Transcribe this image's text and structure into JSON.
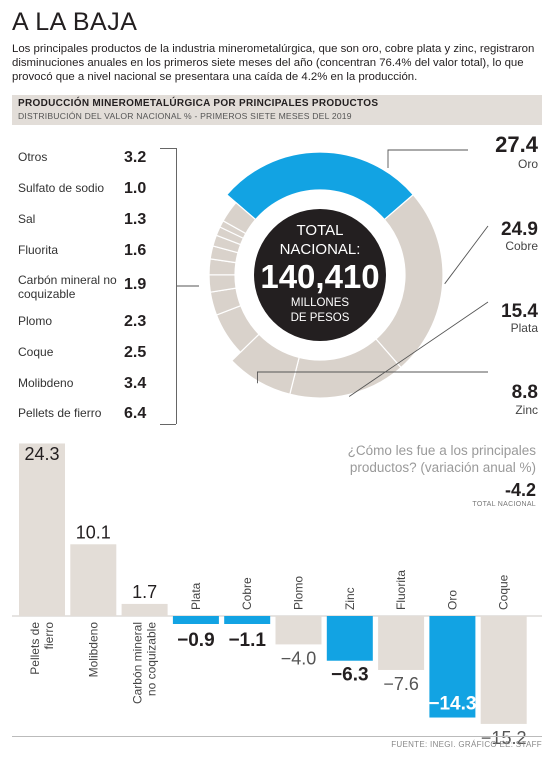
{
  "header": {
    "title": "A LA BAJA",
    "intro": "Los principales productos de la industria minerometalúrgica, que son oro, cobre plata y zinc, registraron disminuciones anuales en los primeros siete meses del año (concentran 76.4% del valor total), lo que provocó que a nivel nacional se presentara una caída de 4.2% en la producción."
  },
  "chart_data": [
    {
      "type": "pie",
      "title": "PRODUCCIÓN MINEROMETALÚRGICA POR PRINCIPALES PRODUCTOS",
      "subtitle": "DISTRIBUCIÓN DEL VALOR NACIONAL % - PRIMEROS SIETE MESES DEL 2019",
      "center": {
        "line1": "TOTAL",
        "line2": "NACIONAL:",
        "value": "140,410",
        "unit1": "MILLONES",
        "unit2": "DE PESOS"
      },
      "main_slices": [
        {
          "name": "Oro",
          "value": 27.4
        },
        {
          "name": "Cobre",
          "value": 24.9
        },
        {
          "name": "Plata",
          "value": 15.4
        },
        {
          "name": "Zinc",
          "value": 8.8
        }
      ],
      "minor_slices": [
        {
          "name": "Otros",
          "value": 3.2
        },
        {
          "name": "Sulfato de sodio",
          "value": 1.0
        },
        {
          "name": "Sal",
          "value": 1.3
        },
        {
          "name": "Fluorita",
          "value": 1.6
        },
        {
          "name": "Carbón mineral no coquizable",
          "value": 1.9
        },
        {
          "name": "Plomo",
          "value": 2.3
        },
        {
          "name": "Coque",
          "value": 2.5
        },
        {
          "name": "Molibdeno",
          "value": 3.4
        },
        {
          "name": "Pellets de fierro",
          "value": 6.4
        }
      ],
      "highlight_color": "#12a3e3",
      "slice_color": "#d9d2cb",
      "center_color": "#231f20"
    },
    {
      "type": "bar",
      "title": "¿Cómo les fue a los principales productos? (variación anual %)",
      "total_value": "-4.2",
      "total_label": "TOTAL NACIONAL",
      "categories": [
        "Pellets de fierro",
        "Molibdeno",
        "Carbón mineral no coquizable",
        "Plata",
        "Cobre",
        "Plomo",
        "Zinc",
        "Fluorita",
        "Oro",
        "Coque"
      ],
      "values": [
        24.3,
        10.1,
        1.7,
        -0.9,
        -1.1,
        -4.0,
        -6.3,
        -7.6,
        -14.3,
        -15.2
      ],
      "value_labels": [
        "24.3",
        "10.1",
        "1.7",
        "-0.9",
        "-1.1",
        "-4.0",
        "-6.3",
        "-7.6",
        "-14.3",
        "-15.2"
      ],
      "highlight": [
        false,
        false,
        false,
        true,
        true,
        false,
        true,
        false,
        true,
        false
      ],
      "highlight_color": "#12a3e3",
      "bar_color": "#e3ddd7"
    }
  ],
  "source": "FUENTE: INEGI. GRÁFICO EE: STAFF"
}
